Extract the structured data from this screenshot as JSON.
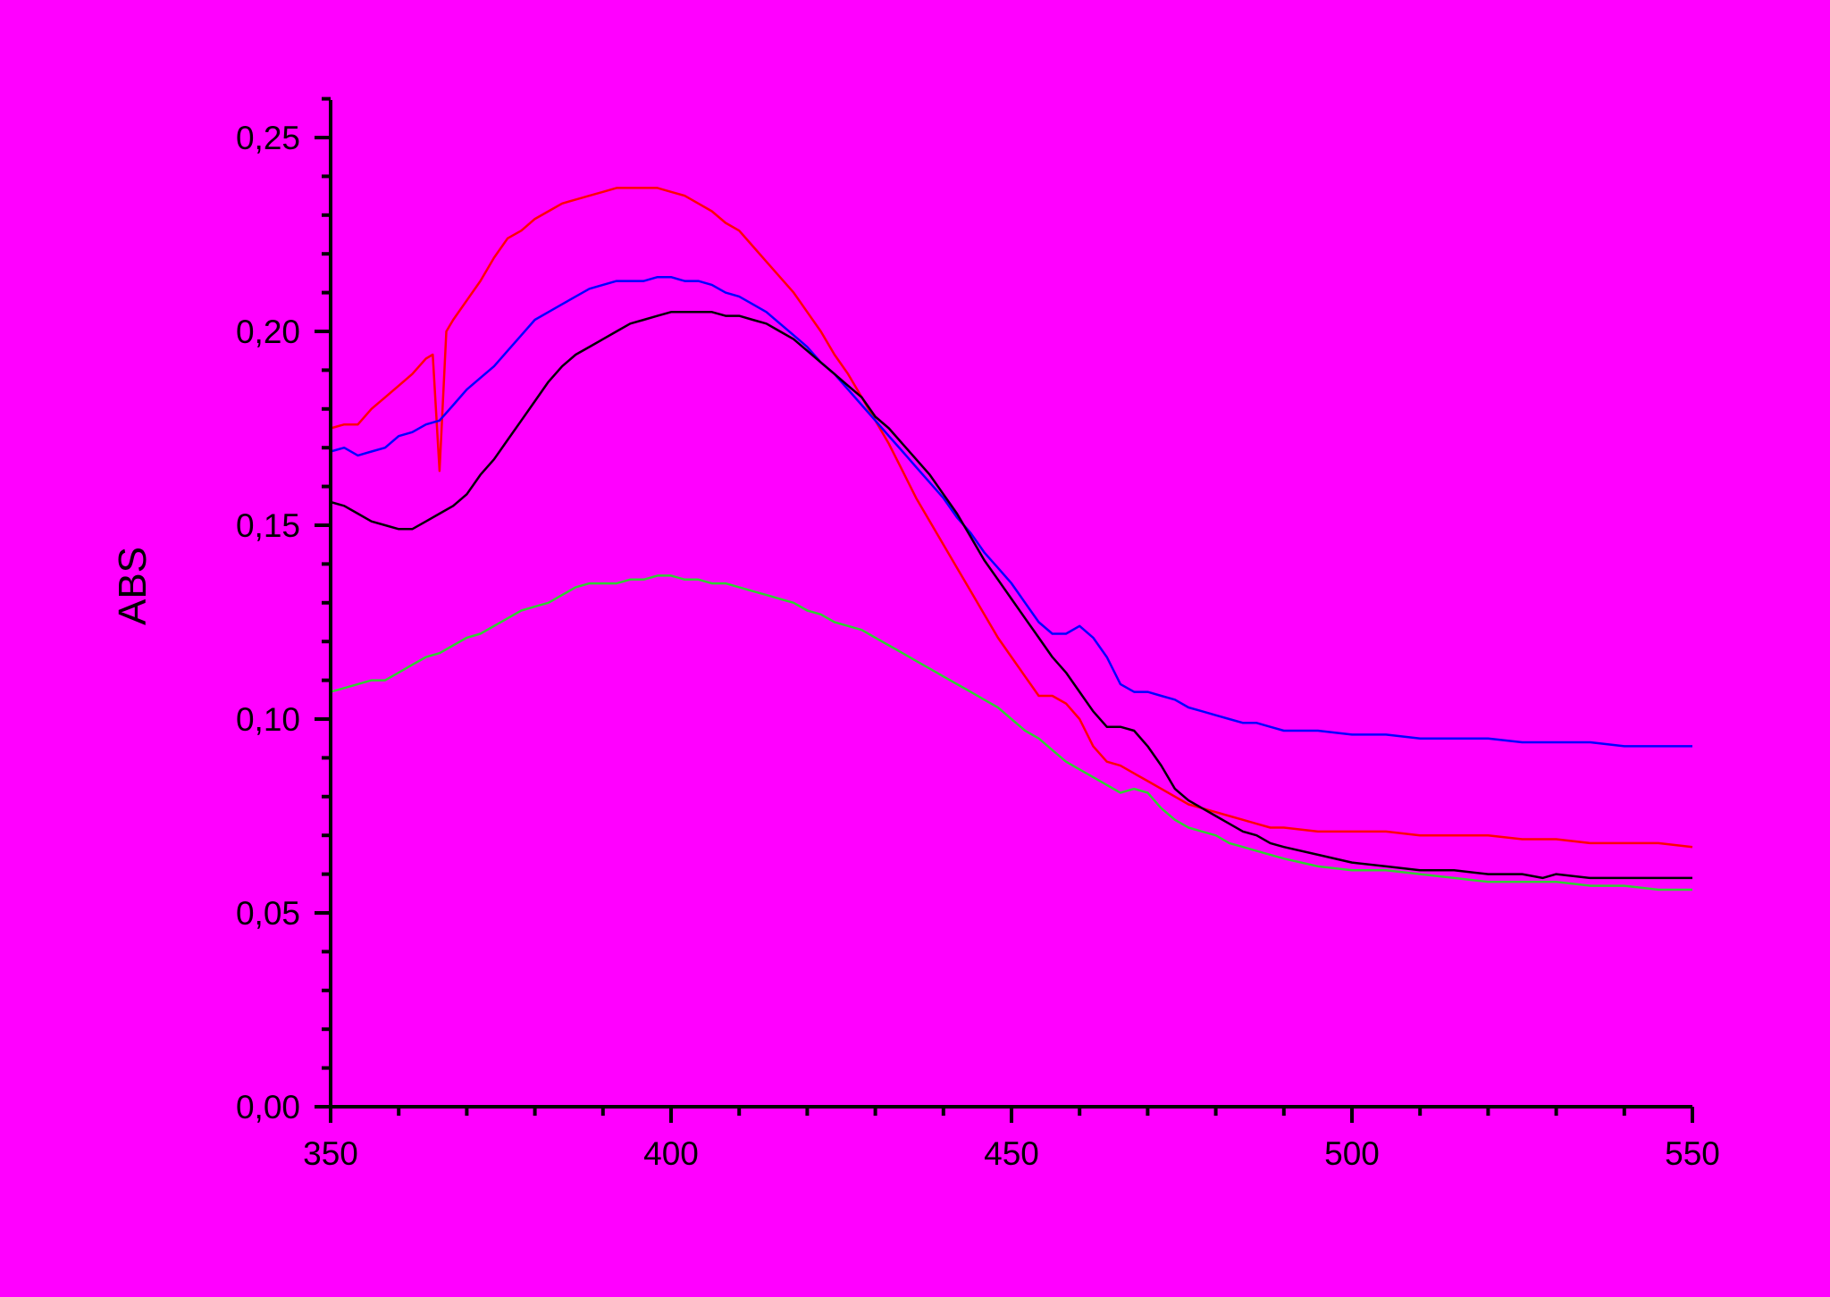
{
  "chart_data": {
    "type": "line",
    "title": "",
    "xlabel": "",
    "ylabel": "ABS",
    "xlim": [
      350,
      550
    ],
    "ylim": [
      0.0,
      0.26
    ],
    "grid": false,
    "background_color": "#ff00ff",
    "x_ticks": [
      350,
      400,
      450,
      500,
      550
    ],
    "x_tick_labels": [
      "350",
      "400",
      "450",
      "500",
      "550"
    ],
    "y_ticks": [
      0.0,
      0.05,
      0.1,
      0.15,
      0.2,
      0.25
    ],
    "y_tick_labels": [
      "0,00",
      "0,05",
      "0,10",
      "0,15",
      "0,20",
      "0,25"
    ],
    "series": [
      {
        "color": "#ff0000",
        "x": [
          350,
          352,
          354,
          356,
          358,
          360,
          362,
          364,
          365,
          366,
          367,
          368,
          370,
          372,
          374,
          376,
          378,
          380,
          382,
          384,
          386,
          388,
          390,
          392,
          394,
          396,
          398,
          400,
          402,
          404,
          406,
          408,
          410,
          412,
          414,
          416,
          418,
          420,
          422,
          424,
          426,
          428,
          430,
          432,
          434,
          436,
          438,
          440,
          442,
          444,
          446,
          448,
          450,
          452,
          454,
          456,
          458,
          460,
          462,
          464,
          466,
          468,
          470,
          472,
          474,
          476,
          478,
          480,
          482,
          484,
          486,
          488,
          490,
          495,
          500,
          505,
          510,
          515,
          520,
          525,
          530,
          535,
          540,
          545,
          550
        ],
        "y": [
          0.175,
          0.176,
          0.176,
          0.18,
          0.183,
          0.186,
          0.189,
          0.193,
          0.194,
          0.164,
          0.2,
          0.203,
          0.208,
          0.213,
          0.219,
          0.224,
          0.226,
          0.229,
          0.231,
          0.233,
          0.234,
          0.235,
          0.236,
          0.237,
          0.237,
          0.237,
          0.237,
          0.236,
          0.235,
          0.233,
          0.231,
          0.228,
          0.226,
          0.222,
          0.218,
          0.214,
          0.21,
          0.205,
          0.2,
          0.194,
          0.189,
          0.183,
          0.177,
          0.171,
          0.164,
          0.157,
          0.151,
          0.145,
          0.139,
          0.133,
          0.127,
          0.121,
          0.116,
          0.111,
          0.106,
          0.106,
          0.104,
          0.1,
          0.093,
          0.089,
          0.088,
          0.086,
          0.084,
          0.082,
          0.08,
          0.078,
          0.077,
          0.076,
          0.075,
          0.074,
          0.073,
          0.072,
          0.072,
          0.071,
          0.071,
          0.071,
          0.07,
          0.07,
          0.07,
          0.069,
          0.069,
          0.068,
          0.068,
          0.068,
          0.067
        ]
      },
      {
        "color": "#0000ff",
        "x": [
          350,
          352,
          354,
          356,
          358,
          360,
          362,
          364,
          366,
          368,
          370,
          372,
          374,
          376,
          378,
          380,
          382,
          384,
          386,
          388,
          390,
          392,
          394,
          396,
          398,
          400,
          402,
          404,
          406,
          408,
          410,
          412,
          414,
          416,
          418,
          420,
          422,
          424,
          426,
          428,
          430,
          432,
          434,
          436,
          438,
          440,
          442,
          444,
          446,
          448,
          450,
          452,
          454,
          456,
          458,
          460,
          462,
          464,
          466,
          468,
          470,
          472,
          474,
          476,
          478,
          480,
          482,
          484,
          486,
          488,
          490,
          495,
          500,
          505,
          510,
          515,
          520,
          525,
          530,
          535,
          540,
          545,
          550
        ],
        "y": [
          0.169,
          0.17,
          0.168,
          0.169,
          0.17,
          0.173,
          0.174,
          0.176,
          0.177,
          0.181,
          0.185,
          0.188,
          0.191,
          0.195,
          0.199,
          0.203,
          0.205,
          0.207,
          0.209,
          0.211,
          0.212,
          0.213,
          0.213,
          0.213,
          0.214,
          0.214,
          0.213,
          0.213,
          0.212,
          0.21,
          0.209,
          0.207,
          0.205,
          0.202,
          0.199,
          0.196,
          0.192,
          0.189,
          0.185,
          0.181,
          0.177,
          0.173,
          0.169,
          0.165,
          0.161,
          0.157,
          0.152,
          0.148,
          0.143,
          0.139,
          0.135,
          0.13,
          0.125,
          0.122,
          0.122,
          0.124,
          0.121,
          0.116,
          0.109,
          0.107,
          0.107,
          0.106,
          0.105,
          0.103,
          0.102,
          0.101,
          0.1,
          0.099,
          0.099,
          0.098,
          0.097,
          0.097,
          0.096,
          0.096,
          0.095,
          0.095,
          0.095,
          0.094,
          0.094,
          0.094,
          0.093,
          0.093,
          0.093
        ]
      },
      {
        "color": "#000000",
        "x": [
          350,
          352,
          354,
          356,
          358,
          360,
          362,
          364,
          366,
          368,
          370,
          372,
          374,
          376,
          378,
          380,
          382,
          384,
          386,
          388,
          390,
          392,
          394,
          396,
          398,
          400,
          402,
          404,
          406,
          408,
          410,
          412,
          414,
          416,
          418,
          420,
          422,
          424,
          426,
          428,
          430,
          432,
          434,
          436,
          438,
          440,
          442,
          444,
          446,
          448,
          450,
          452,
          454,
          456,
          458,
          460,
          462,
          464,
          466,
          468,
          470,
          472,
          474,
          476,
          478,
          480,
          482,
          484,
          486,
          488,
          490,
          495,
          500,
          505,
          510,
          515,
          520,
          525,
          528,
          530,
          535,
          540,
          545,
          550
        ],
        "y": [
          0.156,
          0.155,
          0.153,
          0.151,
          0.15,
          0.149,
          0.149,
          0.151,
          0.153,
          0.155,
          0.158,
          0.163,
          0.167,
          0.172,
          0.177,
          0.182,
          0.187,
          0.191,
          0.194,
          0.196,
          0.198,
          0.2,
          0.202,
          0.203,
          0.204,
          0.205,
          0.205,
          0.205,
          0.205,
          0.204,
          0.204,
          0.203,
          0.202,
          0.2,
          0.198,
          0.195,
          0.192,
          0.189,
          0.186,
          0.183,
          0.178,
          0.175,
          0.171,
          0.167,
          0.163,
          0.158,
          0.153,
          0.147,
          0.141,
          0.136,
          0.131,
          0.126,
          0.121,
          0.116,
          0.112,
          0.107,
          0.102,
          0.098,
          0.098,
          0.097,
          0.093,
          0.088,
          0.082,
          0.079,
          0.077,
          0.075,
          0.073,
          0.071,
          0.07,
          0.068,
          0.067,
          0.065,
          0.063,
          0.062,
          0.061,
          0.061,
          0.06,
          0.06,
          0.059,
          0.06,
          0.059,
          0.059,
          0.059,
          0.059
        ]
      },
      {
        "color": "#33cc33",
        "x": [
          350,
          352,
          354,
          356,
          358,
          360,
          362,
          364,
          366,
          368,
          370,
          372,
          374,
          376,
          378,
          380,
          382,
          384,
          386,
          388,
          390,
          392,
          394,
          396,
          398,
          400,
          402,
          404,
          406,
          408,
          410,
          412,
          414,
          416,
          418,
          420,
          422,
          424,
          426,
          428,
          430,
          432,
          434,
          436,
          438,
          440,
          442,
          444,
          446,
          448,
          450,
          452,
          454,
          456,
          458,
          460,
          462,
          464,
          466,
          468,
          470,
          472,
          474,
          476,
          478,
          480,
          482,
          484,
          486,
          488,
          490,
          495,
          500,
          505,
          510,
          515,
          520,
          525,
          530,
          535,
          540,
          545,
          550
        ],
        "y": [
          0.107,
          0.108,
          0.109,
          0.11,
          0.11,
          0.112,
          0.114,
          0.116,
          0.117,
          0.119,
          0.121,
          0.122,
          0.124,
          0.126,
          0.128,
          0.129,
          0.13,
          0.132,
          0.134,
          0.135,
          0.135,
          0.135,
          0.136,
          0.136,
          0.137,
          0.137,
          0.136,
          0.136,
          0.135,
          0.135,
          0.134,
          0.133,
          0.132,
          0.131,
          0.13,
          0.128,
          0.127,
          0.125,
          0.124,
          0.123,
          0.121,
          0.119,
          0.117,
          0.115,
          0.113,
          0.111,
          0.109,
          0.107,
          0.105,
          0.103,
          0.1,
          0.097,
          0.095,
          0.092,
          0.089,
          0.087,
          0.085,
          0.083,
          0.081,
          0.082,
          0.081,
          0.077,
          0.074,
          0.072,
          0.071,
          0.07,
          0.068,
          0.067,
          0.066,
          0.065,
          0.064,
          0.062,
          0.061,
          0.061,
          0.06,
          0.059,
          0.058,
          0.058,
          0.058,
          0.057,
          0.057,
          0.056,
          0.056
        ]
      }
    ]
  }
}
